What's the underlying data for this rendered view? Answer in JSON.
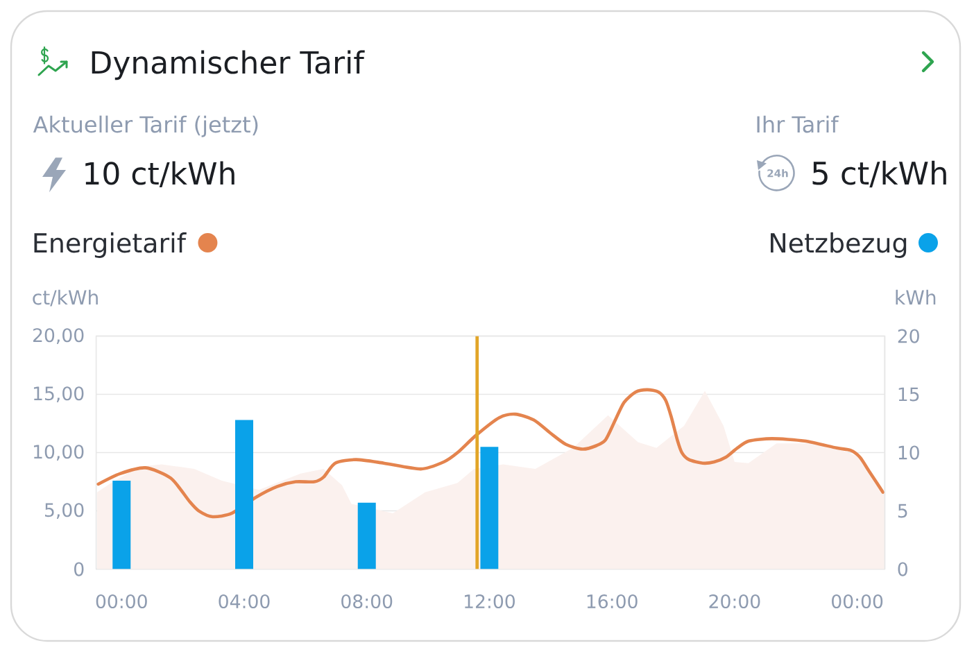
{
  "chart_data": {
    "type": "line",
    "title": "Dynamischer Tarif",
    "annotations": [
      "Aktueller Tarif (jetzt)",
      "10 ct/kWh",
      "Ihr Tarif",
      "24h",
      "5 ct/kWh"
    ],
    "ylabel": "ct/kWh",
    "y2label": "kWh",
    "xlim": [
      -0.83,
      24.9
    ],
    "xticks": [
      {
        "value": 0,
        "label": "00:00"
      },
      {
        "value": 4,
        "label": "04:00"
      },
      {
        "value": 8,
        "label": "08:00"
      },
      {
        "value": 12,
        "label": "12:00"
      },
      {
        "value": 16,
        "label": "16:00"
      },
      {
        "value": 20,
        "label": "20:00"
      },
      {
        "value": 24,
        "label": "00:00"
      }
    ],
    "ylim": [
      0,
      20
    ],
    "yticks": [
      0,
      {
        "value": 5,
        "label": "5,00"
      },
      {
        "value": 10,
        "label": "10,00"
      },
      {
        "value": 15,
        "label": "15,00"
      },
      {
        "value": 20,
        "label": "20,00"
      }
    ],
    "y2lim": [
      0,
      20
    ],
    "y2ticks": [
      0,
      5,
      10,
      15,
      20
    ],
    "grid": "y",
    "legend": "top",
    "ref_lines": [
      {
        "axis": "x",
        "value": 11.6,
        "color": "#e2a528"
      }
    ],
    "series": [
      {
        "type": "area",
        "color": "#fbf1ee",
        "x": [
          -0.8,
          -0.4,
          0.56,
          1.31,
          2.37,
          3.27,
          4.48,
          5.84,
          6.59,
          7.19,
          7.5,
          8.85,
          9.9,
          10.96,
          11.5,
          12.45,
          13.5,
          14.73,
          15.87,
          16.85,
          17.45,
          18.35,
          19.03,
          19.64,
          20.0,
          20.45,
          21.37,
          22.88,
          24.1,
          24.9
        ],
        "values": [
          6.6,
          7.3,
          8.8,
          9.0,
          8.6,
          7.6,
          6.8,
          8.2,
          8.6,
          7.2,
          5.6,
          4.8,
          6.6,
          7.4,
          8.6,
          9.0,
          8.6,
          10.4,
          13.2,
          10.9,
          10.4,
          12.3,
          15.3,
          12.3,
          9.2,
          9.1,
          10.8,
          10.8,
          9.6,
          6.4
        ]
      },
      {
        "name": "Energietarif",
        "color": "#e4844e",
        "x": [
          -0.76,
          -0.05,
          0.78,
          1.61,
          2.22,
          2.52,
          2.97,
          3.6,
          4.4,
          5.08,
          5.68,
          6.29,
          6.59,
          6.97,
          7.65,
          8.55,
          9.76,
          10.51,
          10.96,
          11.57,
          12.32,
          12.85,
          13.45,
          13.98,
          14.5,
          15.04,
          15.49,
          15.79,
          16.09,
          16.39,
          16.77,
          17.15,
          17.52,
          17.75,
          17.93,
          18.13,
          18.28,
          18.51,
          18.96,
          19.33,
          19.71,
          20.09,
          20.47,
          21.22,
          22.28,
          23.33,
          23.78,
          24.09,
          24.39,
          24.84
        ],
        "values": [
          7.3,
          8.2,
          8.7,
          7.8,
          5.8,
          5.0,
          4.5,
          4.8,
          6.2,
          7.1,
          7.5,
          7.5,
          7.9,
          9.1,
          9.4,
          9.1,
          8.6,
          9.2,
          10.0,
          11.5,
          13.0,
          13.3,
          12.8,
          11.7,
          10.7,
          10.3,
          10.6,
          11.1,
          12.7,
          14.3,
          15.2,
          15.4,
          15.2,
          14.5,
          13.1,
          11.1,
          10.0,
          9.4,
          9.1,
          9.2,
          9.6,
          10.4,
          11.0,
          11.2,
          11.0,
          10.4,
          10.2,
          9.6,
          8.4,
          6.6
        ]
      },
      {
        "type": "bar",
        "name": "Netzbezug",
        "axis": "y2",
        "color": "#0aa2e9",
        "x": [
          0,
          4,
          8,
          12
        ],
        "values": [
          7.6,
          12.8,
          5.7,
          10.5
        ]
      }
    ]
  }
}
